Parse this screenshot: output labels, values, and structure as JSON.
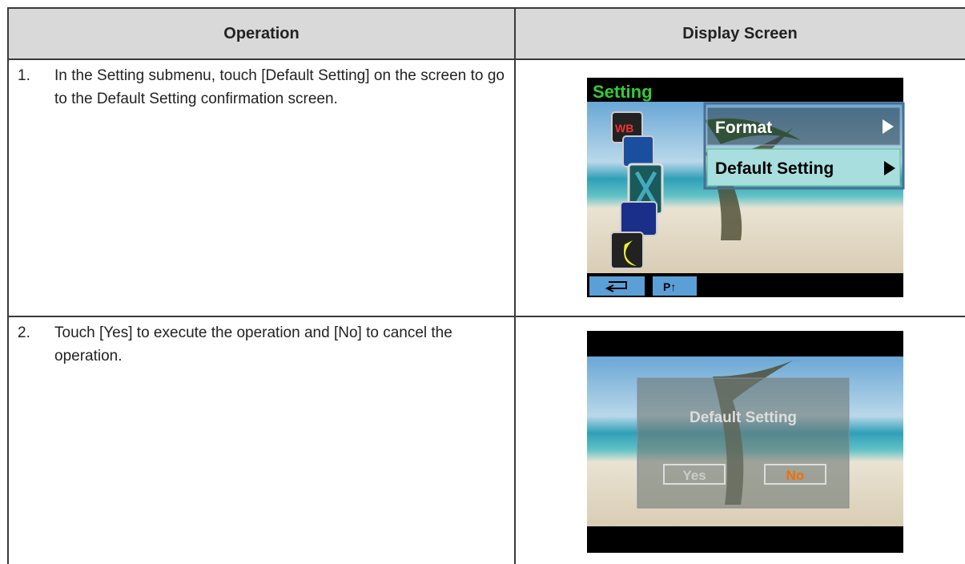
{
  "table": {
    "header": [
      "Operation",
      "Display Screen"
    ],
    "rows": [
      {
        "number": "1.",
        "text": "In the Setting submenu, touch [Default Setting] on the screen to go to the Default Setting confirmation screen.",
        "screen": {
          "title": "Setting",
          "icon_label": "WB",
          "menu": [
            "Format",
            "Default Setting"
          ],
          "button": "P↑"
        }
      },
      {
        "number": "2.",
        "text": "Touch [Yes] to execute the operation and [No] to cancel the operation.",
        "screen": {
          "title": "Default Setting",
          "buttons": [
            "Yes",
            "No"
          ]
        }
      }
    ]
  }
}
